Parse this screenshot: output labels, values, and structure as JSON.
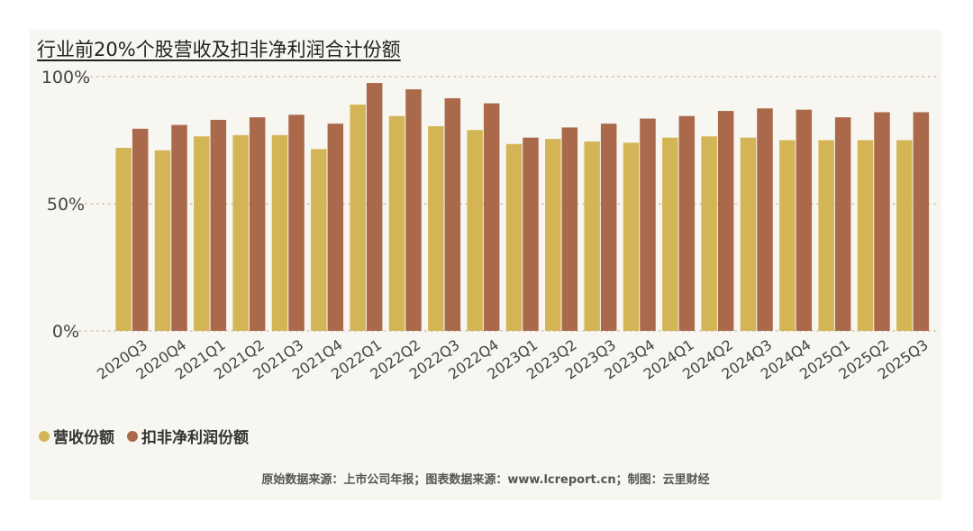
{
  "chart_data": {
    "type": "bar",
    "title": "行业前20%个股营收及扣非净利润合计份额",
    "categories": [
      "2020Q3",
      "2020Q4",
      "2021Q1",
      "2021Q2",
      "2021Q3",
      "2021Q4",
      "2022Q1",
      "2022Q2",
      "2022Q3",
      "2022Q4",
      "2023Q1",
      "2023Q2",
      "2023Q3",
      "2023Q4",
      "2024Q1",
      "2024Q2",
      "2024Q3",
      "2024Q4",
      "2025Q1",
      "2025Q2",
      "2025Q3"
    ],
    "series": [
      {
        "name": "营收份额",
        "color": "#d4b556",
        "values": [
          72,
          71,
          76.5,
          77,
          77,
          71.5,
          89,
          84.5,
          80.5,
          79,
          73.5,
          75.5,
          74.5,
          74,
          76,
          76.5,
          76,
          75,
          75,
          75,
          75
        ]
      },
      {
        "name": "扣非净利润份额",
        "color": "#a9694a",
        "values": [
          79.5,
          81,
          83,
          84,
          85,
          81.5,
          97.5,
          95,
          91.5,
          89.5,
          76,
          80,
          81.5,
          83.5,
          84.5,
          86.5,
          87.5,
          87,
          84,
          86,
          86
        ]
      }
    ],
    "ylim": [
      0,
      100
    ],
    "yticks": [
      "0%",
      "50%",
      "100%"
    ],
    "xlabel": "",
    "ylabel": "",
    "grid": "dotted horizontal",
    "legend": "bottom-left"
  },
  "source": "原始数据来源：上市公司年报；图表数据来源：www.lcreport.cn；制图：云里财经"
}
